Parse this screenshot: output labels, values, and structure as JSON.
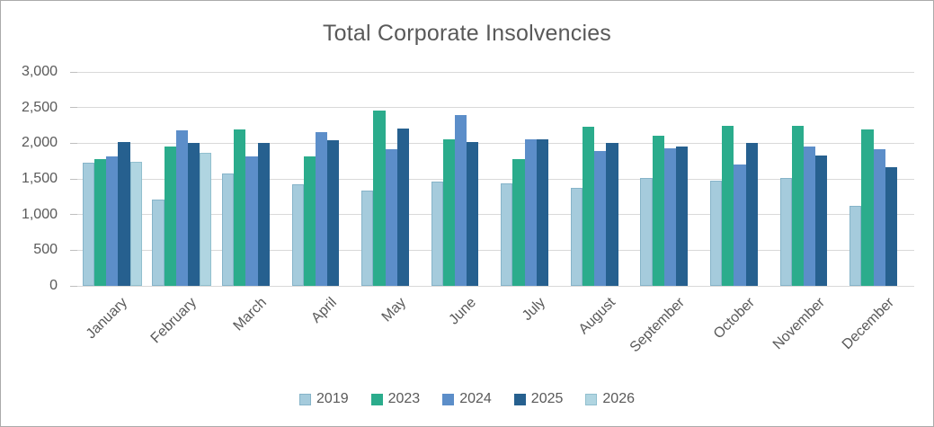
{
  "chart_data": {
    "type": "bar",
    "title": "Total Corporate Insolvencies",
    "xlabel": "",
    "ylabel": "",
    "ylim": [
      0,
      3000
    ],
    "ytick_step": 500,
    "ytick_labels": [
      "0",
      "500",
      "1,000",
      "1,500",
      "2,000",
      "2,500",
      "3,000"
    ],
    "grid": true,
    "legend_position": "bottom",
    "categories": [
      "January",
      "February",
      "March",
      "April",
      "May",
      "June",
      "July",
      "August",
      "September",
      "October",
      "November",
      "December"
    ],
    "series": [
      {
        "name": "2019",
        "color": "#a5cbdc",
        "border_color": "#86b4c9",
        "values": [
          1730,
          1210,
          1580,
          1420,
          1340,
          1460,
          1440,
          1370,
          1510,
          1480,
          1510,
          1120
        ]
      },
      {
        "name": "2023",
        "color": "#2bac8c",
        "border_color": "#2bac8c",
        "values": [
          1775,
          1950,
          2190,
          1810,
          2460,
          2060,
          1780,
          2230,
          2100,
          2240,
          2250,
          2190
        ]
      },
      {
        "name": "2024",
        "color": "#5c8ec9",
        "border_color": "#5c8ec9",
        "values": [
          1820,
          2180,
          1820,
          2150,
          1910,
          2400,
          2050,
          1890,
          1930,
          1700,
          1960,
          1910
        ]
      },
      {
        "name": "2025",
        "color": "#26608f",
        "border_color": "#26608f",
        "values": [
          2020,
          2005,
          2000,
          2040,
          2210,
          2020,
          2050,
          2010,
          1950,
          2000,
          1830,
          1670
        ]
      },
      {
        "name": "2026",
        "color": "#b0d5e1",
        "border_color": "#91bfce",
        "values": [
          1745,
          1860,
          null,
          null,
          null,
          null,
          null,
          null,
          null,
          null,
          null,
          null
        ]
      }
    ],
    "colors": {
      "title_text": "#595959",
      "axis_text": "#595959",
      "gridline": "#d9d9d9",
      "frame_border": "#ababab"
    }
  }
}
